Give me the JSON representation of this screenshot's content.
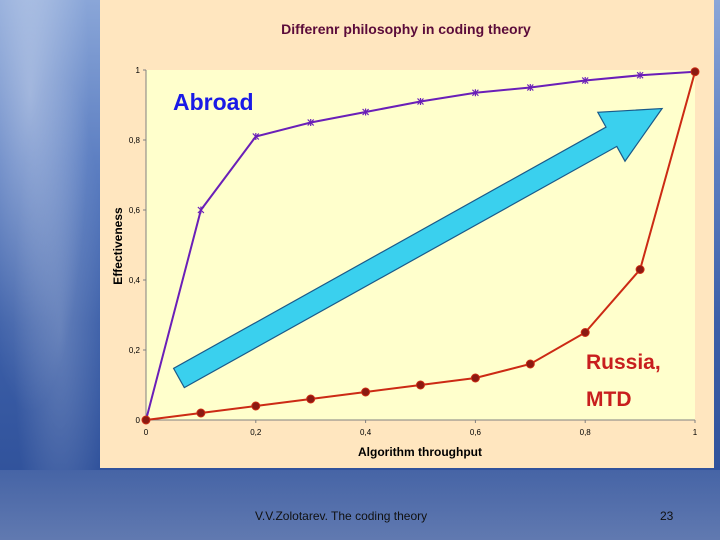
{
  "slide": {
    "footer_text": "V.V.Zolotarev. The coding theory",
    "page_number": "23"
  },
  "colors": {
    "abroad_series": "#6a1fb8",
    "russia_series": "#cc2a14",
    "arrow_fill": "#3ad0ee",
    "plot_background": "#ffffcc",
    "panel_background": "#ffe6bf"
  },
  "chart_data": {
    "type": "line",
    "title": "Differenr philosophy in coding theory",
    "xlabel": "Algorithm throughput",
    "ylabel": "Effectiveness",
    "xlim": [
      0,
      1
    ],
    "ylim": [
      0,
      1
    ],
    "x_ticks": [
      "0",
      "0,2",
      "0,4",
      "0,6",
      "0,8",
      "1"
    ],
    "y_ticks": [
      "0",
      "0,2",
      "0,4",
      "0,6",
      "0,8",
      "1"
    ],
    "grid": false,
    "series": [
      {
        "name": "Abroad",
        "marker": "star",
        "points": [
          [
            0,
            0
          ],
          [
            0.1,
            0.6
          ],
          [
            0.2,
            0.81
          ],
          [
            0.3,
            0.85
          ],
          [
            0.4,
            0.88
          ],
          [
            0.5,
            0.91
          ],
          [
            0.6,
            0.935
          ],
          [
            0.7,
            0.95
          ],
          [
            0.8,
            0.97
          ],
          [
            0.9,
            0.985
          ],
          [
            1.0,
            0.995
          ]
        ]
      },
      {
        "name": "Russia, MTD",
        "marker": "circle",
        "points": [
          [
            0,
            0
          ],
          [
            0.1,
            0.02
          ],
          [
            0.2,
            0.04
          ],
          [
            0.3,
            0.06
          ],
          [
            0.4,
            0.08
          ],
          [
            0.5,
            0.1
          ],
          [
            0.6,
            0.12
          ],
          [
            0.7,
            0.16
          ],
          [
            0.8,
            0.25
          ],
          [
            0.9,
            0.43
          ],
          [
            1.0,
            0.995
          ]
        ]
      }
    ],
    "annotations": [
      {
        "text": "Abroad",
        "color": "#1a1ae6"
      },
      {
        "text_line1": "Russia,",
        "text_line2": "MTD",
        "color": "#c81e1e"
      }
    ],
    "arrow": {
      "from": [
        0.06,
        0.12
      ],
      "to": [
        0.94,
        0.89
      ]
    }
  }
}
